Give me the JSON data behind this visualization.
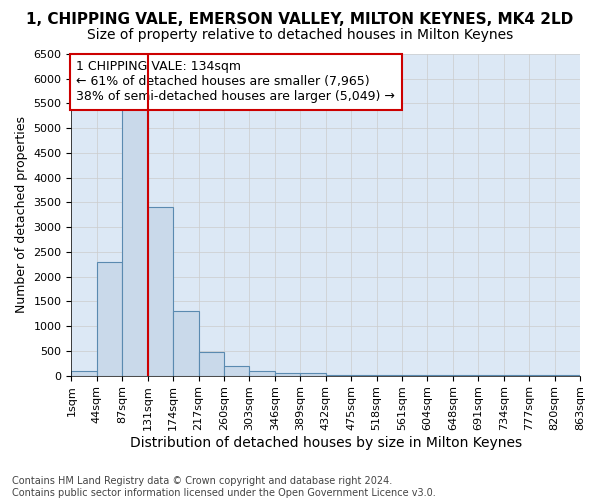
{
  "title": "1, CHIPPING VALE, EMERSON VALLEY, MILTON KEYNES, MK4 2LD",
  "subtitle": "Size of property relative to detached houses in Milton Keynes",
  "xlabel": "Distribution of detached houses by size in Milton Keynes",
  "ylabel": "Number of detached properties",
  "bin_labels": [
    "1sqm",
    "44sqm",
    "87sqm",
    "131sqm",
    "174sqm",
    "217sqm",
    "260sqm",
    "303sqm",
    "346sqm",
    "389sqm",
    "432sqm",
    "475sqm",
    "518sqm",
    "561sqm",
    "604sqm",
    "648sqm",
    "691sqm",
    "734sqm",
    "777sqm",
    "820sqm",
    "863sqm"
  ],
  "bar_values": [
    100,
    2300,
    5400,
    3400,
    1300,
    480,
    190,
    100,
    60,
    55,
    5,
    5,
    5,
    5,
    5,
    5,
    5,
    5,
    5,
    5
  ],
  "bar_color": "#c9d9ea",
  "bar_edgecolor": "#5a8ab0",
  "bar_linewidth": 0.8,
  "highlight_bin_index": 3,
  "highlight_line_color": "#cc0000",
  "ylim": [
    0,
    6500
  ],
  "yticks": [
    0,
    500,
    1000,
    1500,
    2000,
    2500,
    3000,
    3500,
    4000,
    4500,
    5000,
    5500,
    6000,
    6500
  ],
  "annotation_text": "1 CHIPPING VALE: 134sqm\n← 61% of detached houses are smaller (7,965)\n38% of semi-detached houses are larger (5,049) →",
  "annotation_box_edgecolor": "#cc0000",
  "annotation_box_facecolor": "white",
  "grid_color": "#cccccc",
  "background_color": "#dce8f5",
  "footer_text": "Contains HM Land Registry data © Crown copyright and database right 2024.\nContains public sector information licensed under the Open Government Licence v3.0.",
  "title_fontsize": 11,
  "subtitle_fontsize": 10,
  "xlabel_fontsize": 10,
  "ylabel_fontsize": 9,
  "tick_fontsize": 8,
  "annotation_fontsize": 9,
  "footer_fontsize": 7
}
